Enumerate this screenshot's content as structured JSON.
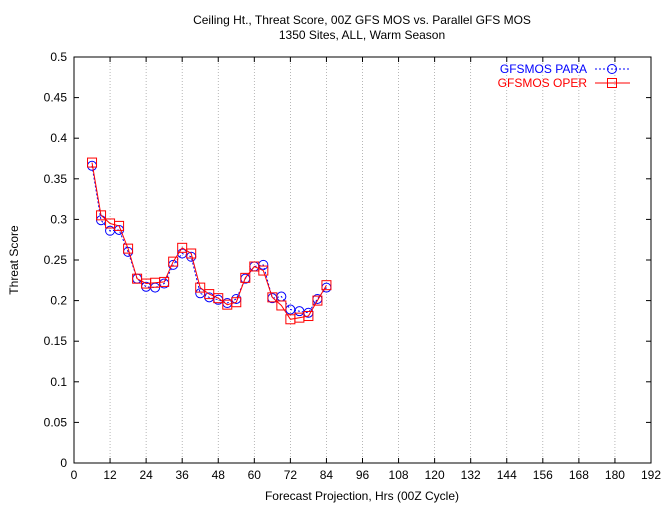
{
  "chart_data": {
    "type": "line",
    "title": "Ceiling Ht., Threat Score, 00Z GFS MOS vs. Parallel GFS MOS",
    "subtitle": "1350 Sites, ALL, Warm Season",
    "xlabel": "Forecast Projection, Hrs (00Z Cycle)",
    "ylabel": "Threat Score",
    "xlim": [
      0,
      192
    ],
    "ylim": [
      0,
      0.5
    ],
    "xticks": [
      0,
      12,
      24,
      36,
      48,
      60,
      72,
      84,
      96,
      108,
      120,
      132,
      144,
      156,
      168,
      180,
      192
    ],
    "xtick_labels": [
      "0",
      "12",
      "24",
      "36",
      "48",
      "60",
      "72",
      "84",
      "96",
      "108",
      "120",
      "132",
      "144",
      "156",
      "168",
      "180",
      "192"
    ],
    "yticks": [
      0,
      0.05,
      0.1,
      0.15,
      0.2,
      0.25,
      0.3,
      0.35,
      0.4,
      0.45,
      0.5
    ],
    "ytick_labels": [
      "0",
      "0.05",
      "0.1",
      "0.15",
      "0.2",
      "0.25",
      "0.3",
      "0.35",
      "0.4",
      "0.45",
      "0.5"
    ],
    "grid": "vertical dotted",
    "legend_position": "top-right",
    "x": [
      6,
      9,
      12,
      15,
      18,
      21,
      24,
      27,
      30,
      33,
      36,
      39,
      42,
      45,
      48,
      51,
      54,
      57,
      60,
      63,
      66,
      69,
      72,
      75,
      78,
      81,
      84
    ],
    "series": [
      {
        "name": "GFSMOS PARA",
        "color": "#0000ff",
        "marker": "circle",
        "line": "dotted",
        "values": [
          0.366,
          0.299,
          0.286,
          0.287,
          0.26,
          0.227,
          0.217,
          0.216,
          0.221,
          0.244,
          0.258,
          0.254,
          0.209,
          0.204,
          0.201,
          0.197,
          0.202,
          0.227,
          0.242,
          0.244,
          0.203,
          0.205,
          0.189,
          0.187,
          0.185,
          0.202,
          0.216
        ]
      },
      {
        "name": "GFSMOS OPER",
        "color": "#ff0000",
        "marker": "square",
        "line": "solid",
        "values": [
          0.37,
          0.305,
          0.295,
          0.292,
          0.264,
          0.227,
          0.221,
          0.222,
          0.223,
          0.248,
          0.265,
          0.258,
          0.216,
          0.208,
          0.203,
          0.195,
          0.198,
          0.228,
          0.242,
          0.237,
          0.204,
          0.194,
          0.177,
          0.179,
          0.181,
          0.2,
          0.219
        ]
      }
    ]
  }
}
